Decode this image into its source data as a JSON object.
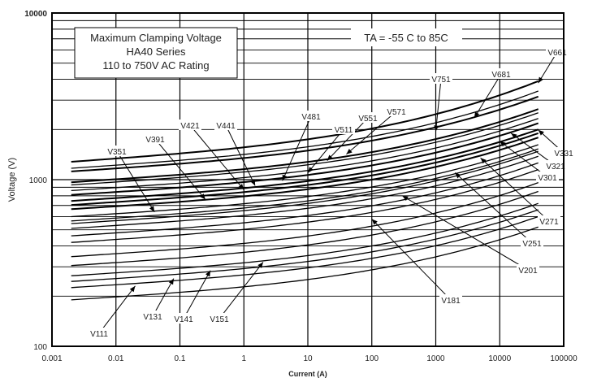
{
  "chart_data": {
    "type": "line",
    "title_box": {
      "lines": [
        "Maximum Clamping Voltage",
        "HA40  Series",
        "110 to 750V AC Rating"
      ]
    },
    "temperature_note": "TA = -55 C to 85C",
    "xlabel": "Current (A)",
    "ylabel": "Voltage (V)",
    "xscale": "log",
    "yscale": "log",
    "xlim": [
      0.001,
      100000
    ],
    "ylim": [
      100,
      10000
    ],
    "x_tick_labels": [
      "0.001",
      "0.01",
      "0.1",
      "1",
      "10",
      "100",
      "1000",
      "10000",
      "100000"
    ],
    "y_tick_labels": [
      "100",
      "1000",
      "10000"
    ],
    "grid": true,
    "x_data_range": [
      0.002,
      40000
    ],
    "series": [
      {
        "name": "V111",
        "start": 190,
        "end": 520
      },
      {
        "name": "V131",
        "start": 225,
        "end": 600
      },
      {
        "name": "V141",
        "start": 245,
        "end": 660
      },
      {
        "name": "V151",
        "start": 265,
        "end": 720
      },
      {
        "name": "V181",
        "start": 305,
        "end": 850
      },
      {
        "name": "V201",
        "start": 345,
        "end": 960
      },
      {
        "name": "V251",
        "start": 420,
        "end": 1150
      },
      {
        "name": "V271",
        "start": 460,
        "end": 1260
      },
      {
        "name": "V301",
        "start": 510,
        "end": 1380
      },
      {
        "name": "V321",
        "start": 545,
        "end": 1480
      },
      {
        "name": "V331",
        "start": 565,
        "end": 1530
      },
      {
        "name": "V351",
        "start": 600,
        "end": 1620
      },
      {
        "name": "V391",
        "start": 665,
        "end": 1790
      },
      {
        "name": "V421",
        "start": 705,
        "end": 1900
      },
      {
        "name": "V441",
        "start": 745,
        "end": 2000
      },
      {
        "name": "V481",
        "start": 810,
        "end": 2180
      },
      {
        "name": "V511",
        "start": 860,
        "end": 2330
      },
      {
        "name": "V551",
        "start": 930,
        "end": 2520
      },
      {
        "name": "V571",
        "start": 965,
        "end": 2650
      },
      {
        "name": "V681",
        "start": 1120,
        "end": 3150
      },
      {
        "name": "V661",
        "start": 1170,
        "end": 3400
      },
      {
        "name": "V751",
        "start": 1280,
        "end": 3900
      }
    ],
    "annotations": [
      {
        "label": "V661",
        "point": [
          40000,
          3800
        ]
      },
      {
        "label": "V751",
        "point": [
          1000,
          1950
        ]
      },
      {
        "label": "V681",
        "point": [
          4000,
          2350
        ]
      },
      {
        "label": "V571",
        "point": [
          40,
          1420
        ]
      },
      {
        "label": "V551",
        "point": [
          20,
          1300
        ]
      },
      {
        "label": "V511",
        "point": [
          10,
          1100
        ]
      },
      {
        "label": "V481",
        "point": [
          4,
          985
        ]
      },
      {
        "label": "V441",
        "point": [
          1.5,
          920
        ]
      },
      {
        "label": "V421",
        "point": [
          1,
          870
        ]
      },
      {
        "label": "V391",
        "point": [
          0.25,
          760
        ]
      },
      {
        "label": "V351",
        "point": [
          0.04,
          640
        ]
      },
      {
        "label": "V331",
        "point": [
          40000,
          1990
        ]
      },
      {
        "label": "V321",
        "point": [
          15000,
          1900
        ]
      },
      {
        "label": "V301",
        "point": [
          10000,
          1700
        ]
      },
      {
        "label": "V271",
        "point": [
          5000,
          1350
        ]
      },
      {
        "label": "V251",
        "point": [
          2000,
          1100
        ]
      },
      {
        "label": "V201",
        "point": [
          300,
          800
        ]
      },
      {
        "label": "V181",
        "point": [
          100,
          580
        ]
      },
      {
        "label": "V151",
        "point": [
          2,
          320
        ]
      },
      {
        "label": "V141",
        "point": [
          0.3,
          285
        ]
      },
      {
        "label": "V131",
        "point": [
          0.08,
          255
        ]
      },
      {
        "label": "V111",
        "point": [
          0.02,
          230
        ]
      }
    ]
  }
}
